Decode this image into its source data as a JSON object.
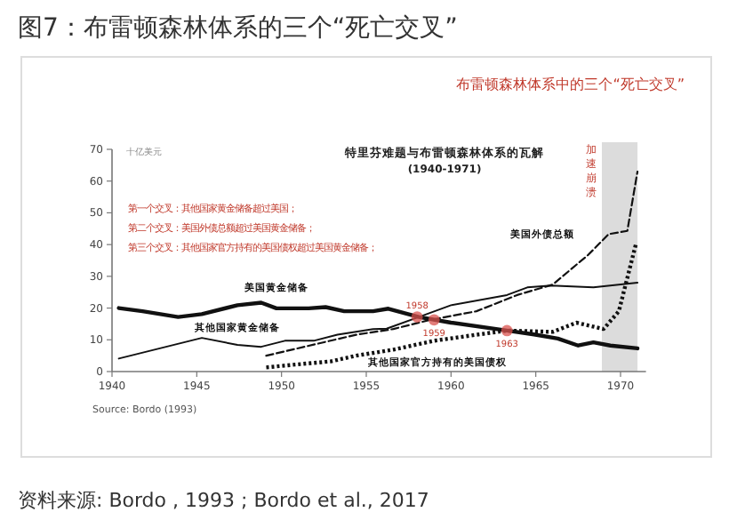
{
  "chart_data": {
    "type": "line",
    "title": "图7：布雷顿森林体系的三个“死亡交叉”",
    "subtitle": "布雷顿森林体系中的三个“死亡交叉”",
    "ylabel": "十亿美元",
    "xlim": [
      1940,
      1971.5
    ],
    "xticks": [
      1940,
      1945,
      1950,
      1955,
      1960,
      1965,
      1970
    ],
    "ylim": [
      0,
      70
    ],
    "yticks": [
      0,
      10,
      20,
      30,
      40,
      50,
      60,
      70
    ],
    "grid": false,
    "marker": "none",
    "series": [
      {
        "name": "美国黄金储备",
        "color": "#111111",
        "line_style": "solid",
        "x": [
          1940.4,
          1941.8,
          1943.9,
          1945.3,
          1947.4,
          1948.8,
          1949.7,
          1951.6,
          1952.6,
          1953.7,
          1955.4,
          1956.3,
          1958.1,
          1960,
          1963.3,
          1964.9,
          1966.3,
          1967.5,
          1968.4,
          1969.4,
          1971
        ],
        "values": [
          20,
          19,
          17.2,
          18.1,
          20.9,
          21.7,
          19.9,
          19.9,
          20.3,
          19,
          19,
          19.8,
          17.2,
          15.4,
          12.9,
          11.7,
          10.4,
          8.2,
          9.2,
          8.2,
          7.3
        ]
      },
      {
        "name": "其他国家黄金储备",
        "color": "#111111",
        "line_style": "solid",
        "x": [
          1940.4,
          1945.3,
          1947.4,
          1948.8,
          1950.2,
          1951.9,
          1953.3,
          1955.4,
          1956.2,
          1958.1,
          1960,
          1963.3,
          1964.5,
          1965.9,
          1968.4,
          1971
        ],
        "values": [
          4.1,
          10.6,
          8.4,
          7.8,
          9.7,
          9.7,
          11.6,
          13.4,
          13.5,
          17.2,
          20.9,
          24.1,
          26.5,
          27.1,
          26.5,
          28
        ]
      },
      {
        "name": "美国外债总额",
        "color": "#111111",
        "line_style": "dashed",
        "x": [
          1949.1,
          1954.4,
          1956.6,
          1958.7,
          1961.5,
          1963.9,
          1966,
          1968.1,
          1969.3,
          1970.4,
          1971
        ],
        "values": [
          5,
          11.6,
          13.4,
          16.2,
          19,
          24.1,
          27.4,
          36.8,
          43.3,
          44.3,
          63
        ]
      },
      {
        "name": "其他国家官方持有的美国债权",
        "color": "#111111",
        "line_style": "dotted",
        "x": [
          1949.1,
          1950.8,
          1952.9,
          1954.4,
          1956.6,
          1959,
          1961.5,
          1963.3,
          1966,
          1967.4,
          1969,
          1969.9,
          1970.9
        ],
        "values": [
          1.3,
          2.2,
          3.2,
          5,
          6.9,
          9.7,
          11.6,
          12.9,
          12.5,
          15.4,
          13.4,
          19,
          40
        ]
      }
    ],
    "bands": [
      {
        "axis": "x",
        "from": 1968.9,
        "to": 1971,
        "label": "加速崩溃",
        "color": "#dcdcdc"
      }
    ],
    "annotations": [
      "特里芬难题与布雷顿森林体系的瓦解",
      "(1940-1971)",
      "第一个交叉：其他国家黄金储备超过美国；",
      "第二个交叉：美国外债总额超过美国黄金储备；",
      "第三个交叉：其他国家官方持有的美国债权超过美国黄金储备；",
      "Source: Bordo (1993)",
      "资料来源: Bordo , 1993 ; Bordo et al., 2017",
      {
        "text": "1958",
        "x": 1958,
        "y": 17.2
      },
      {
        "text": "1959",
        "x": 1959,
        "y": 16.3
      },
      {
        "text": "1963",
        "x": 1963.3,
        "y": 12.9
      }
    ]
  }
}
